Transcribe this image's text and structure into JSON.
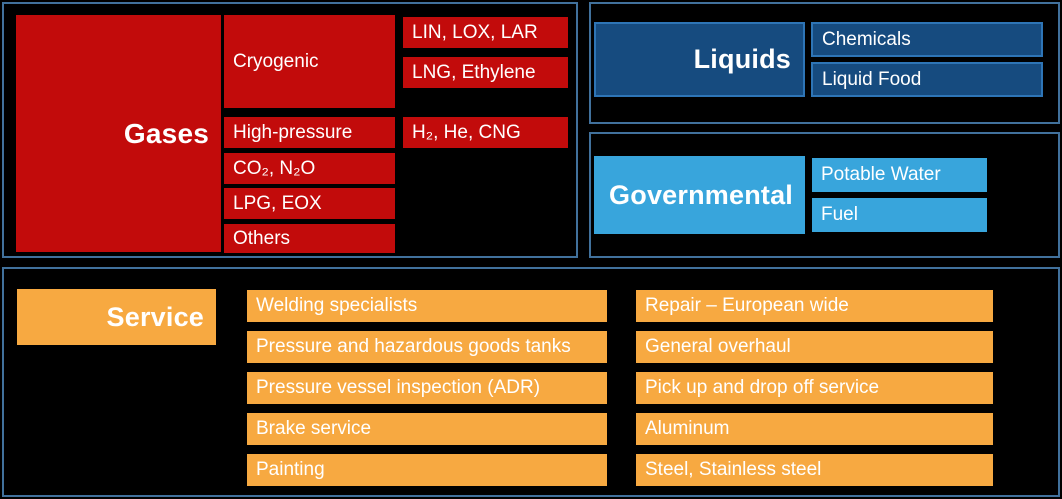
{
  "palette": {
    "background": "#000000",
    "panel_border": "#41719C",
    "gases_red": "#C20B0B",
    "liquids_dark_blue": "#164B7F",
    "liquids_box_border": "#2E75B6",
    "governmental_light_blue": "#38A5DC",
    "service_orange": "#F7A941",
    "text": "#FFFFFF"
  },
  "gases": {
    "title": "Gases",
    "categories": [
      "Cryogenic",
      "High-pressure",
      "CO₂, N₂O",
      "LPG, EOX",
      "Others"
    ],
    "products": [
      "LIN, LOX, LAR",
      "LNG, Ethylene",
      "H₂, He, CNG"
    ]
  },
  "liquids": {
    "title": "Liquids",
    "items": [
      "Chemicals",
      "Liquid Food"
    ]
  },
  "governmental": {
    "title": "Governmental",
    "items": [
      "Potable Water",
      "Fuel"
    ]
  },
  "service": {
    "title": "Service",
    "items_left": [
      "Welding specialists",
      "Pressure and hazardous goods tanks",
      "Pressure vessel inspection (ADR)",
      "Brake service",
      "Painting"
    ],
    "items_right": [
      "Repair – European wide",
      "General overhaul",
      "Pick up and drop off service",
      "Aluminum",
      "Steel, Stainless steel"
    ]
  }
}
